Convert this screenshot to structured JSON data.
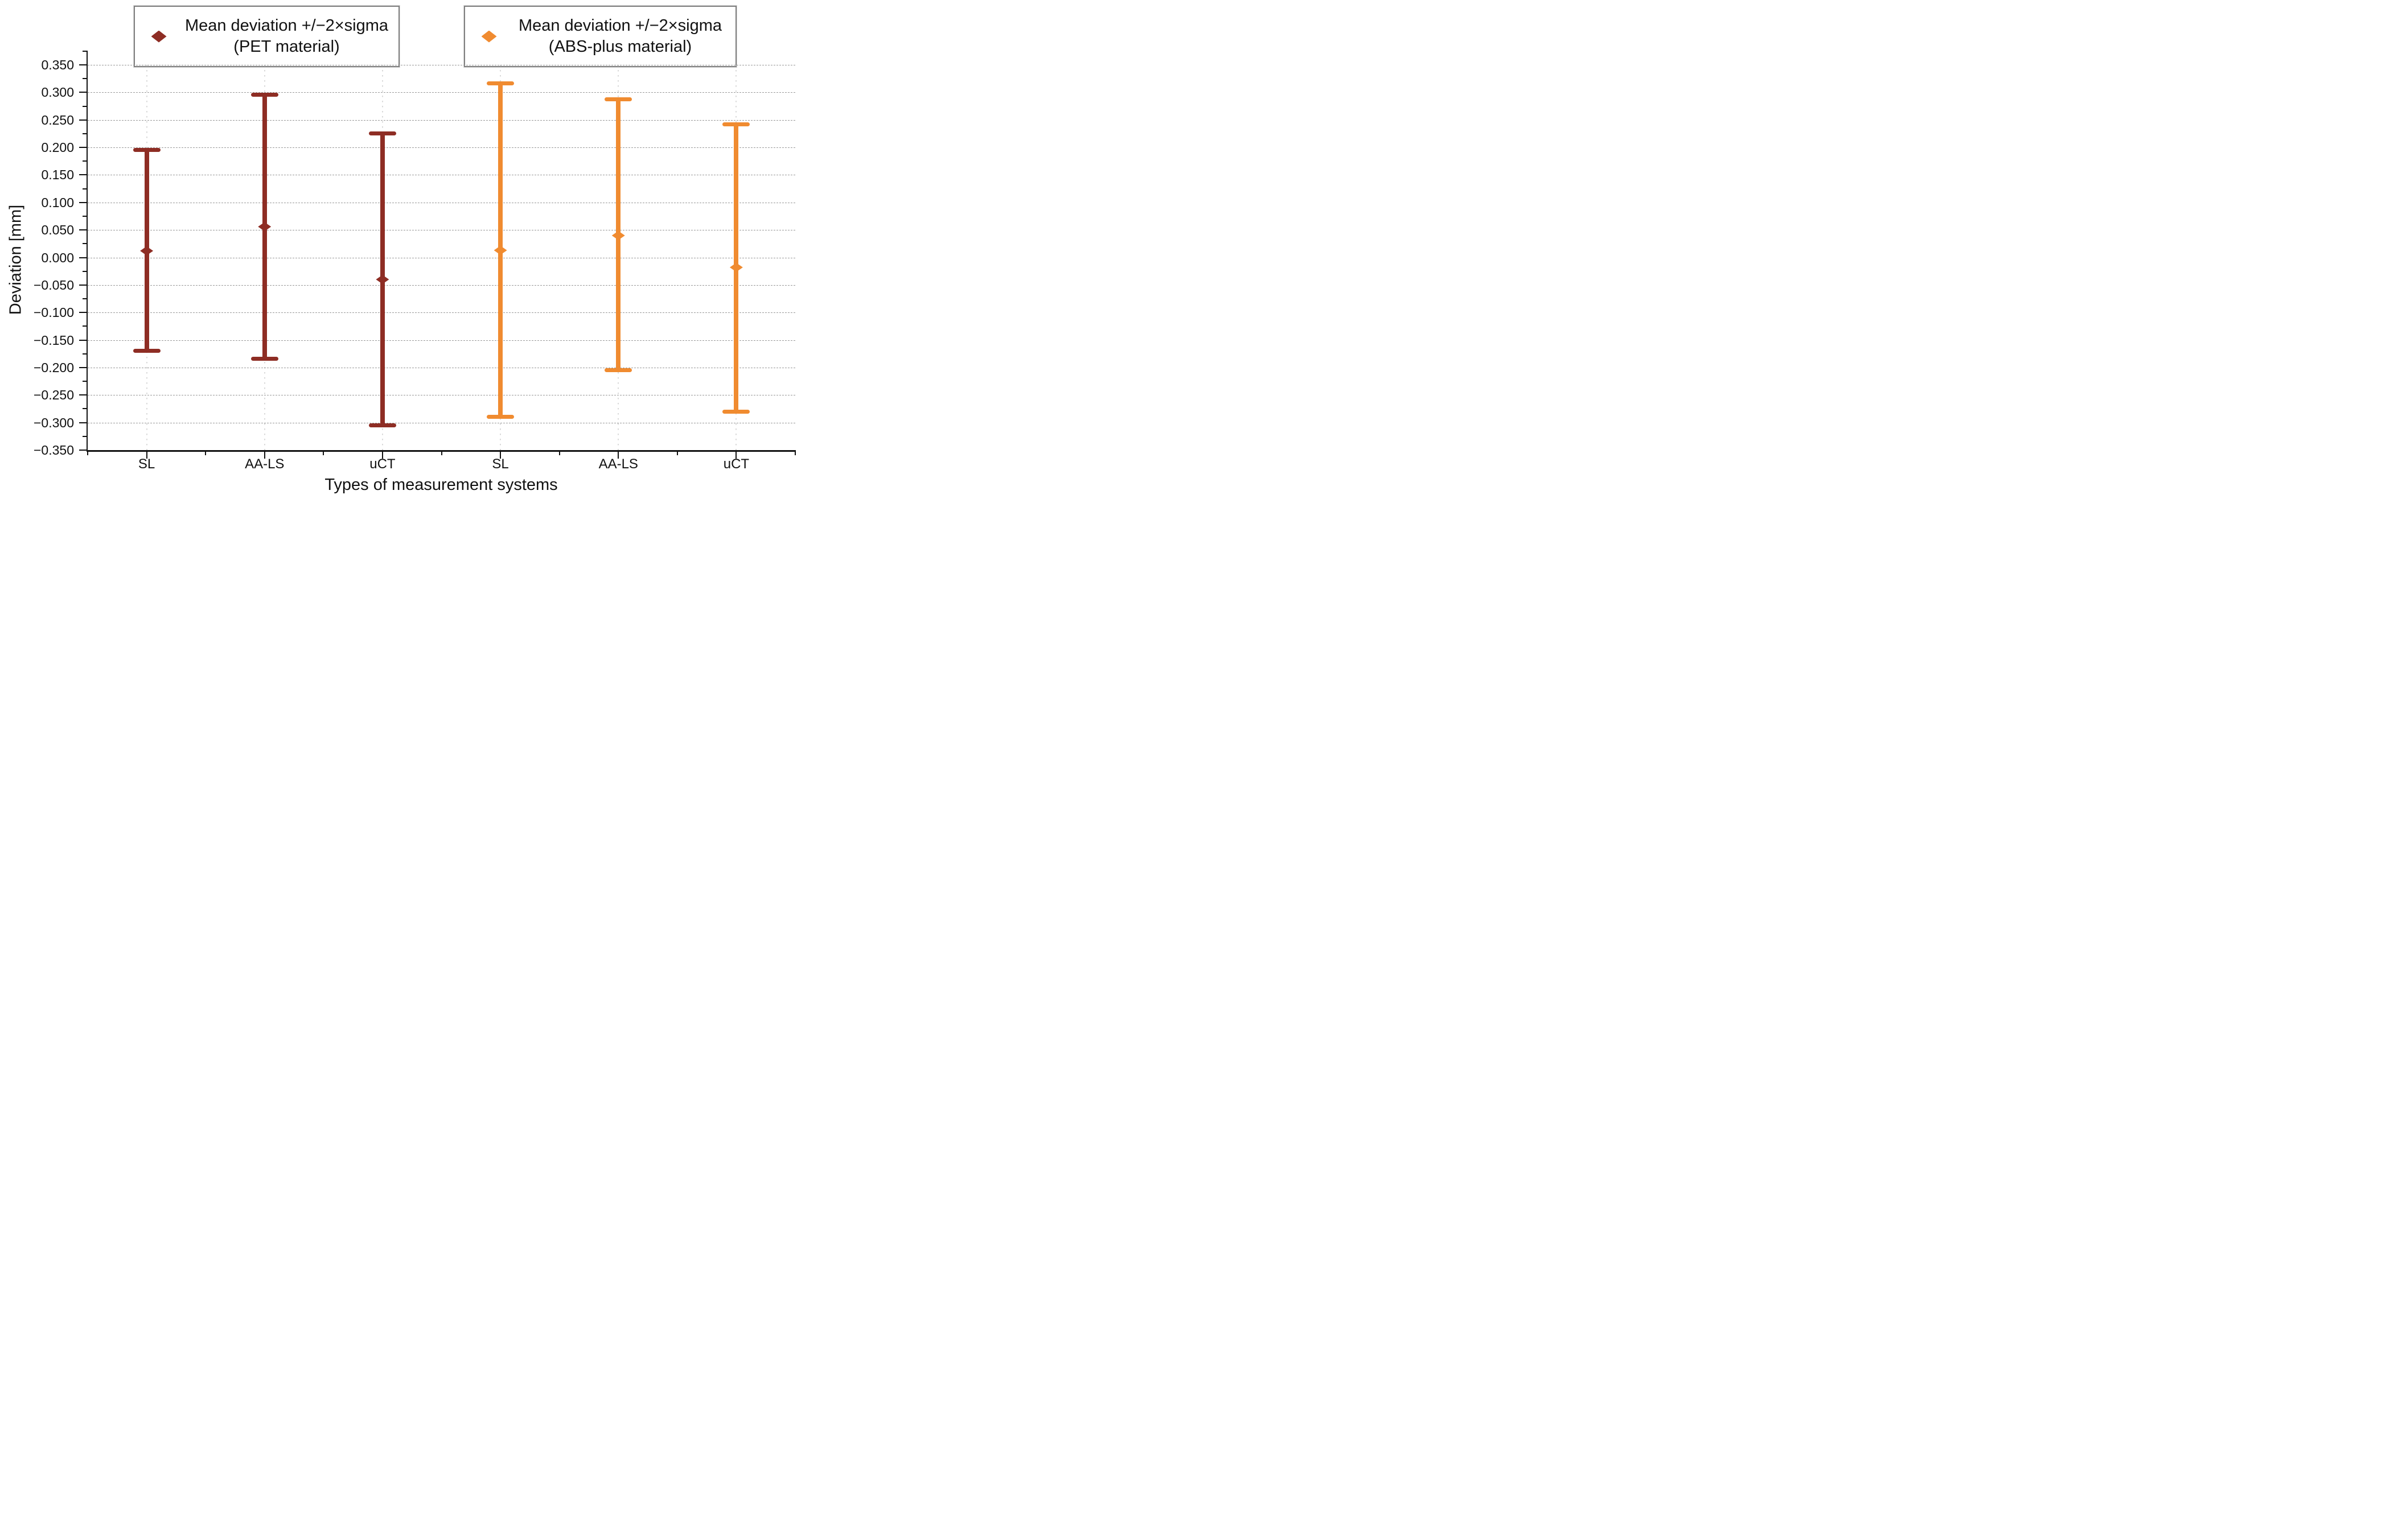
{
  "chart_data": {
    "type": "errorbar",
    "title": "",
    "xlabel": "Types of measurement systems",
    "ylabel": "Deviation [mm]",
    "ylim": [
      -0.35,
      0.35
    ],
    "ytick_step": 0.05,
    "ytick_labels": [
      "0.350",
      "0.300",
      "0.250",
      "0.200",
      "0.150",
      "0.100",
      "0.050",
      "0.000",
      "-0.050",
      "-0.100",
      "-0.150",
      "-0.200",
      "-0.250",
      "-0.300",
      "-0.350"
    ],
    "categories": [
      "SL",
      "AA-LS",
      "uCT",
      "SL",
      "AA-LS",
      "uCT"
    ],
    "grid": "dashed horizontal major gridlines, dotted vertical guides at categories",
    "legend_position": "top",
    "series": [
      {
        "name": "Mean deviation +/−2×sigma (PET material)",
        "legend_line1": "Mean deviation +/−2×sigma",
        "legend_line2": "(PET material)",
        "color": "#8E2D24",
        "marker": "diamond",
        "category_slots": [
          0,
          1,
          2
        ],
        "categories": [
          "SL",
          "AA-LS",
          "uCT"
        ],
        "mean": [
          0.012,
          0.056,
          -0.04
        ],
        "upper": [
          0.195,
          0.296,
          0.225
        ],
        "lower": [
          -0.17,
          -0.184,
          -0.305
        ]
      },
      {
        "name": "Mean deviation +/−2×sigma (ABS-plus material)",
        "legend_line1": "Mean deviation +/−2×sigma",
        "legend_line2": "(ABS-plus material)",
        "color": "#F08B30",
        "marker": "diamond",
        "category_slots": [
          3,
          4,
          5
        ],
        "categories": [
          "SL",
          "AA-LS",
          "uCT"
        ],
        "mean": [
          0.013,
          0.04,
          -0.018
        ],
        "upper": [
          0.316,
          0.287,
          0.242
        ],
        "lower": [
          -0.29,
          -0.205,
          -0.28
        ]
      }
    ]
  }
}
